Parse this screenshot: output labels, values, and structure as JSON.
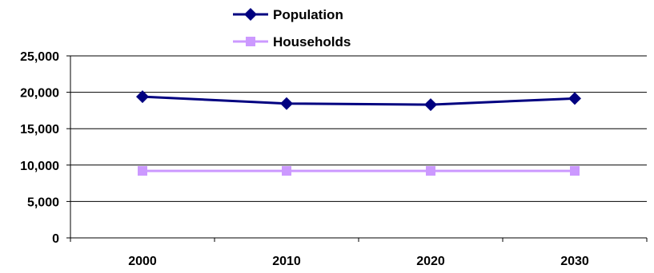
{
  "chart_data": {
    "type": "line",
    "categories": [
      "2000",
      "2010",
      "2020",
      "2030"
    ],
    "series": [
      {
        "name": "Population",
        "values": [
          19400,
          18450,
          18300,
          19150
        ],
        "color": "#000080",
        "marker": "diamond"
      },
      {
        "name": "Households",
        "values": [
          9200,
          9200,
          9200,
          9200
        ],
        "color": "#CC99FF",
        "marker": "square"
      }
    ],
    "ylim": [
      0,
      25000
    ],
    "yticks": [
      0,
      5000,
      10000,
      15000,
      20000,
      25000
    ],
    "ytick_labels": [
      "0",
      "5,000",
      "10,000",
      "15,000",
      "20,000",
      "25,000"
    ],
    "title": "",
    "xlabel": "",
    "ylabel": "",
    "grid": "horizontal",
    "legend_position": "top-center"
  }
}
